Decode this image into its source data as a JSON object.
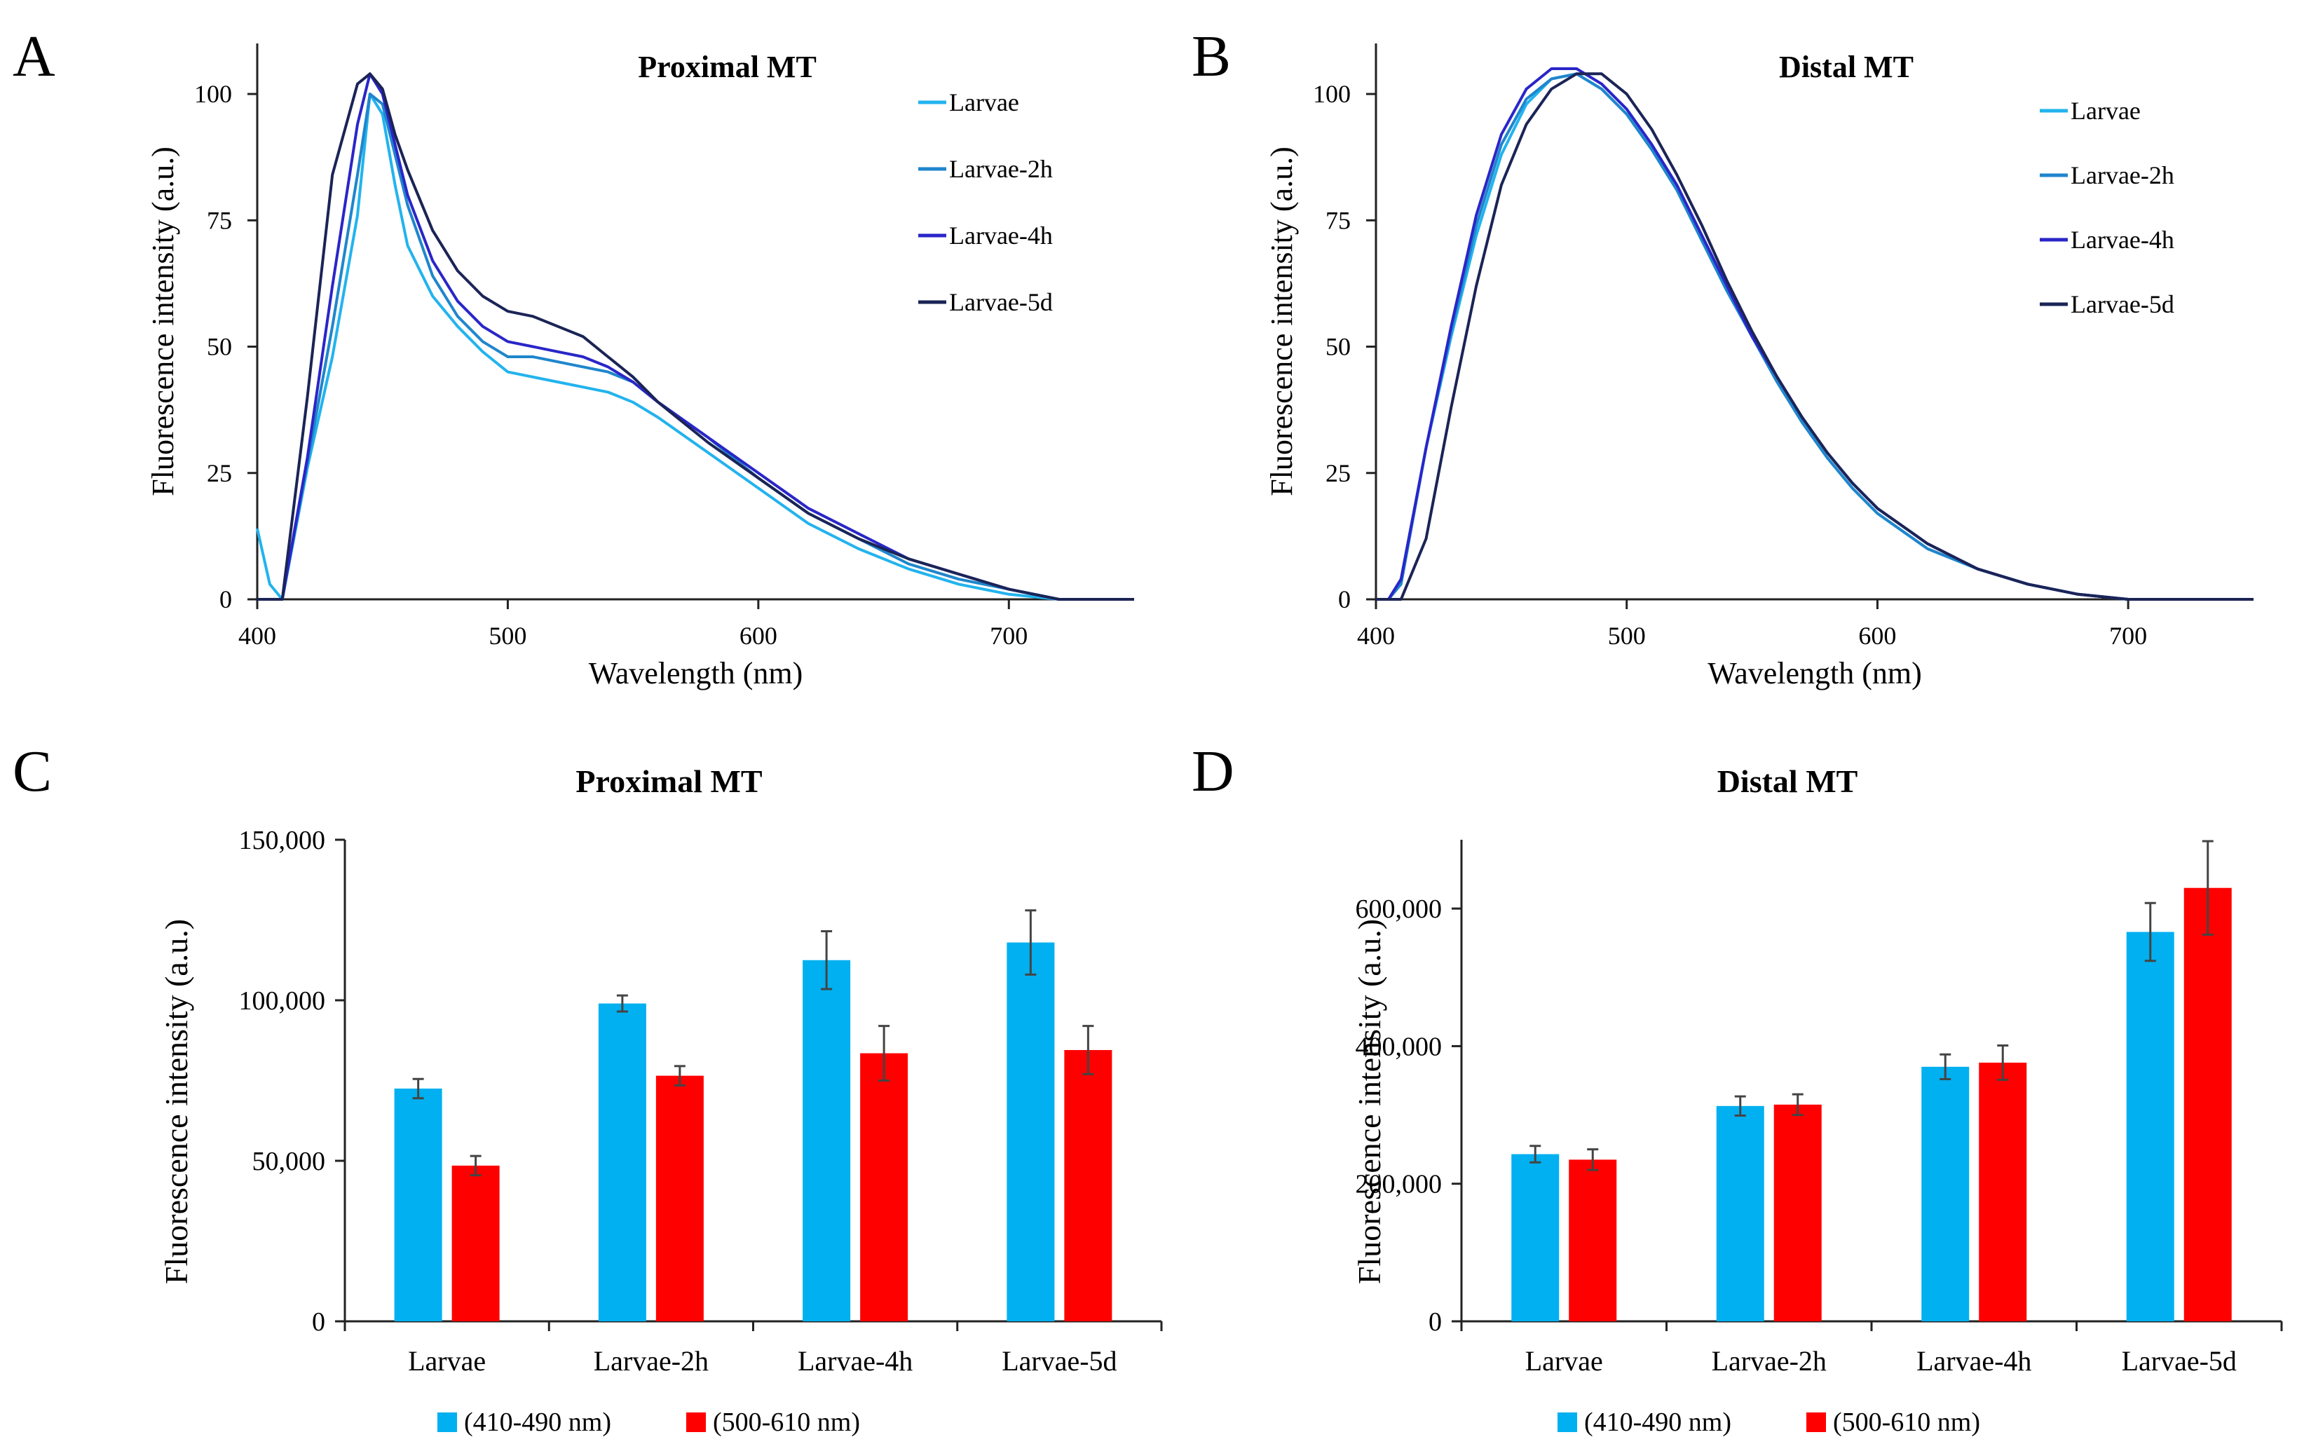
{
  "chart_data": [
    {
      "panel": "A",
      "type": "line",
      "title": "Proximal MT",
      "xlabel": "Wavelength (nm)",
      "ylabel": "Fluorescence intensity (a.u.)",
      "xlim": [
        400,
        750
      ],
      "ylim": [
        0,
        110
      ],
      "xticks": [
        400,
        500,
        600,
        700
      ],
      "yticks": [
        0,
        25,
        50,
        75,
        100
      ],
      "legend_position": "top-right",
      "x": [
        400,
        405,
        410,
        420,
        430,
        440,
        445,
        450,
        455,
        460,
        470,
        480,
        490,
        500,
        510,
        520,
        530,
        540,
        550,
        560,
        580,
        600,
        620,
        640,
        660,
        680,
        700,
        720,
        740,
        750
      ],
      "series": [
        {
          "name": "Larvae",
          "color": "#22b3ee",
          "values": [
            14,
            3,
            0,
            26,
            48,
            76,
            100,
            96,
            82,
            70,
            60,
            54,
            49,
            45,
            44,
            43,
            42,
            41,
            39,
            36,
            29,
            22,
            15,
            10,
            6,
            3,
            1,
            0,
            0,
            0
          ]
        },
        {
          "name": "Larvae-2h",
          "color": "#1f86cc",
          "values": [
            0,
            0,
            0,
            27,
            54,
            84,
            100,
            98,
            88,
            78,
            64,
            56,
            51,
            48,
            48,
            47,
            46,
            45,
            43,
            39,
            32,
            24,
            17,
            12,
            7,
            4,
            2,
            0,
            0,
            0
          ]
        },
        {
          "name": "Larvae-4h",
          "color": "#2a26c8",
          "values": [
            0,
            0,
            0,
            28,
            62,
            94,
            104,
            100,
            90,
            80,
            67,
            59,
            54,
            51,
            50,
            49,
            48,
            46,
            43,
            39,
            32,
            25,
            18,
            13,
            8,
            5,
            2,
            0,
            0,
            0
          ]
        },
        {
          "name": "Larvae-5d",
          "color": "#1b2456",
          "values": [
            0,
            0,
            0,
            40,
            84,
            102,
            104,
            101,
            92,
            85,
            73,
            65,
            60,
            57,
            56,
            54,
            52,
            48,
            44,
            39,
            31,
            24,
            17,
            12,
            8,
            5,
            2,
            0,
            0,
            0
          ]
        }
      ]
    },
    {
      "panel": "B",
      "type": "line",
      "title": "Distal MT",
      "xlabel": "Wavelength (nm)",
      "ylabel": "Fluorescence intensity (a.u.)",
      "xlim": [
        400,
        750
      ],
      "ylim": [
        0,
        110
      ],
      "xticks": [
        400,
        500,
        600,
        700
      ],
      "yticks": [
        0,
        25,
        50,
        75,
        100
      ],
      "legend_position": "top-right",
      "x": [
        400,
        405,
        410,
        420,
        430,
        440,
        450,
        460,
        470,
        480,
        490,
        500,
        510,
        520,
        530,
        540,
        550,
        560,
        570,
        580,
        590,
        600,
        620,
        640,
        660,
        680,
        700,
        720,
        740,
        750
      ],
      "series": [
        {
          "name": "Larvae",
          "color": "#22b3ee",
          "values": [
            0,
            0,
            4,
            30,
            52,
            72,
            88,
            98,
            103,
            104,
            101,
            96,
            89,
            81,
            71,
            61,
            52,
            43,
            35,
            28,
            22,
            17,
            10,
            6,
            3,
            1,
            0,
            0,
            0,
            0
          ]
        },
        {
          "name": "Larvae-2h",
          "color": "#1f86cc",
          "values": [
            0,
            0,
            3,
            30,
            53,
            74,
            90,
            99,
            103,
            104,
            101,
            96,
            89,
            81,
            71,
            61,
            52,
            43,
            35,
            28,
            22,
            17,
            10,
            6,
            3,
            1,
            0,
            0,
            0,
            0
          ]
        },
        {
          "name": "Larvae-4h",
          "color": "#2a26c8",
          "values": [
            0,
            0,
            4,
            30,
            54,
            76,
            92,
            101,
            105,
            105,
            102,
            97,
            90,
            82,
            72,
            62,
            52,
            44,
            36,
            29,
            23,
            18,
            11,
            6,
            3,
            1,
            0,
            0,
            0,
            0
          ]
        },
        {
          "name": "Larvae-5d",
          "color": "#1b2456",
          "values": [
            0,
            0,
            0,
            12,
            38,
            62,
            82,
            94,
            101,
            104,
            104,
            100,
            93,
            84,
            74,
            63,
            53,
            44,
            36,
            29,
            23,
            18,
            11,
            6,
            3,
            1,
            0,
            0,
            0,
            0
          ]
        }
      ]
    },
    {
      "panel": "C",
      "type": "bar",
      "title": "Proximal MT",
      "xlabel": "",
      "ylabel": "Fluorescence intensity (a.u.)",
      "ylim": [
        0,
        150000
      ],
      "yticks": [
        0,
        50000,
        100000,
        150000
      ],
      "ytick_labels": [
        "0",
        "50,000",
        "100,000",
        "150,000"
      ],
      "categories": [
        "Larvae",
        "Larvae-2h",
        "Larvae-4h",
        "Larvae-5d"
      ],
      "legend_position": "bottom",
      "series": [
        {
          "name": "(410-490 nm)",
          "color": "#00b0f0",
          "values": [
            72500,
            99000,
            112500,
            118000
          ],
          "errors": [
            3000,
            2500,
            9000,
            10000
          ]
        },
        {
          "name": "(500-610 nm)",
          "color": "#ff0000",
          "values": [
            48500,
            76500,
            83500,
            84500
          ],
          "errors": [
            3000,
            3000,
            8500,
            7500
          ]
        }
      ]
    },
    {
      "panel": "D",
      "type": "bar",
      "title": "Distal MT",
      "xlabel": "",
      "ylabel": "Fluorescence intensity (a.u.)",
      "ylim": [
        0,
        700000
      ],
      "yticks": [
        0,
        200000,
        400000,
        600000
      ],
      "ytick_labels": [
        "0",
        "200,000",
        "400,000",
        "600,000"
      ],
      "categories": [
        "Larvae",
        "Larvae-2h",
        "Larvae-4h",
        "Larvae-5d"
      ],
      "legend_position": "bottom",
      "series": [
        {
          "name": "(410-490 nm)",
          "color": "#00b0f0",
          "values": [
            243000,
            313000,
            370000,
            566000
          ],
          "errors": [
            12000,
            14000,
            18000,
            42000
          ]
        },
        {
          "name": "(500-610 nm)",
          "color": "#ff0000",
          "values": [
            235000,
            315000,
            376000,
            630000
          ],
          "errors": [
            15000,
            15000,
            25000,
            68000
          ]
        }
      ]
    }
  ]
}
